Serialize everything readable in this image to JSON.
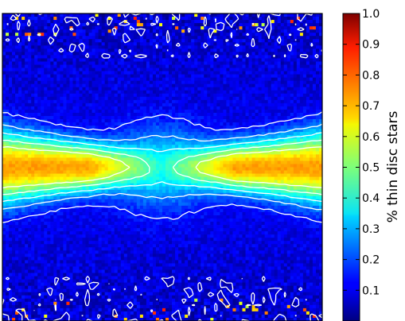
{
  "chart_data": {
    "type": "heatmap",
    "title": "",
    "xlabel": "",
    "ylabel": "",
    "colorbar": {
      "label": "% thin disc stars",
      "range": [
        0.0,
        1.0
      ],
      "ticks": [
        "0.1",
        "0.2",
        "0.3",
        "0.4",
        "0.5",
        "0.6",
        "0.7",
        "0.8",
        "0.9",
        "1.0"
      ],
      "tick_values": [
        0.1,
        0.2,
        0.3,
        0.4,
        0.5,
        0.6,
        0.7,
        0.8,
        0.9,
        1.0
      ],
      "colormap": "jet"
    },
    "contour_levels": [
      0.05,
      0.15,
      0.25,
      0.35,
      0.45,
      0.55
    ],
    "contour_color": "#ffffff",
    "grid": false,
    "legend": "none",
    "approx_profile": {
      "midplane_peak_fraction": 0.72,
      "center_midplane_fraction": 0.45,
      "background_fraction": 0.08,
      "vertical_scale_description": "thin disc fraction falls off with height above the midplane; flared toward the outer edges"
    }
  }
}
